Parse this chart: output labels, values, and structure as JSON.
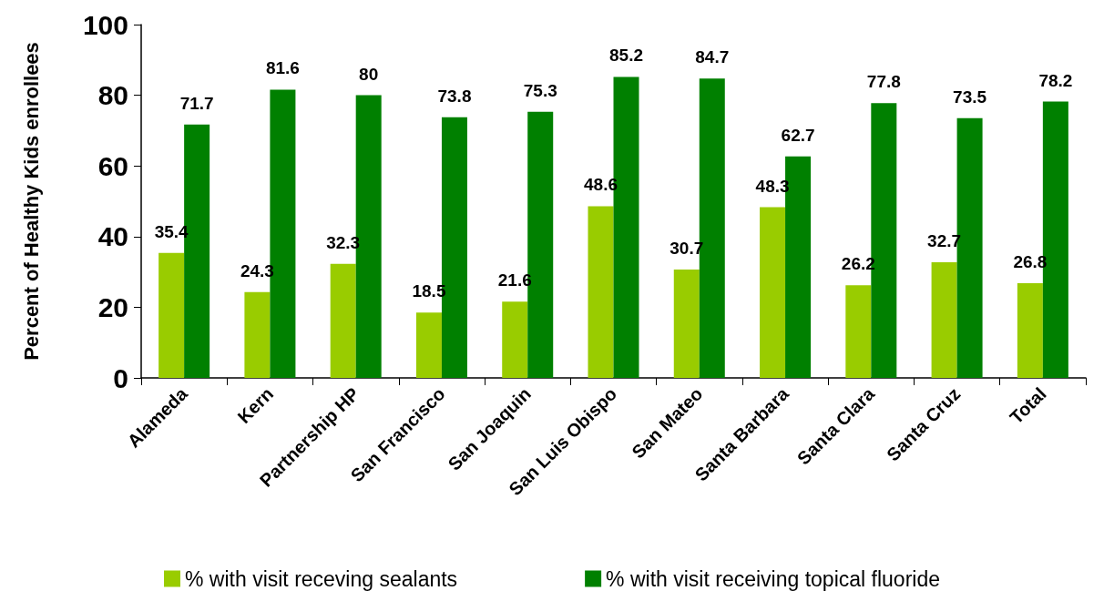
{
  "chart_data": {
    "type": "bar",
    "ylabel": "Percent of Healthy Kids enrollees",
    "categories": [
      "Alameda",
      "Kern",
      "Partnership HP",
      "San Francisco",
      "San Joaquin",
      "San Luis Obispo",
      "San Mateo",
      "Santa Barbara",
      "Santa Clara",
      "Santa Cruz",
      "Total"
    ],
    "series": [
      {
        "name": "% with visit receving sealants",
        "color": "#99cc00",
        "values": [
          35.4,
          24.3,
          32.3,
          18.5,
          21.6,
          48.6,
          30.7,
          48.3,
          26.2,
          32.7,
          26.8
        ]
      },
      {
        "name": "% with visit receiving topical fluoride",
        "color": "#008000",
        "values": [
          71.7,
          81.6,
          80,
          73.8,
          75.3,
          85.2,
          84.7,
          62.7,
          77.8,
          73.5,
          78.2
        ]
      }
    ],
    "ylim": [
      0,
      100
    ],
    "yticks": [
      0,
      20,
      40,
      60,
      80,
      100
    ],
    "grid": false,
    "legend": "bottom",
    "data_labels": true
  }
}
